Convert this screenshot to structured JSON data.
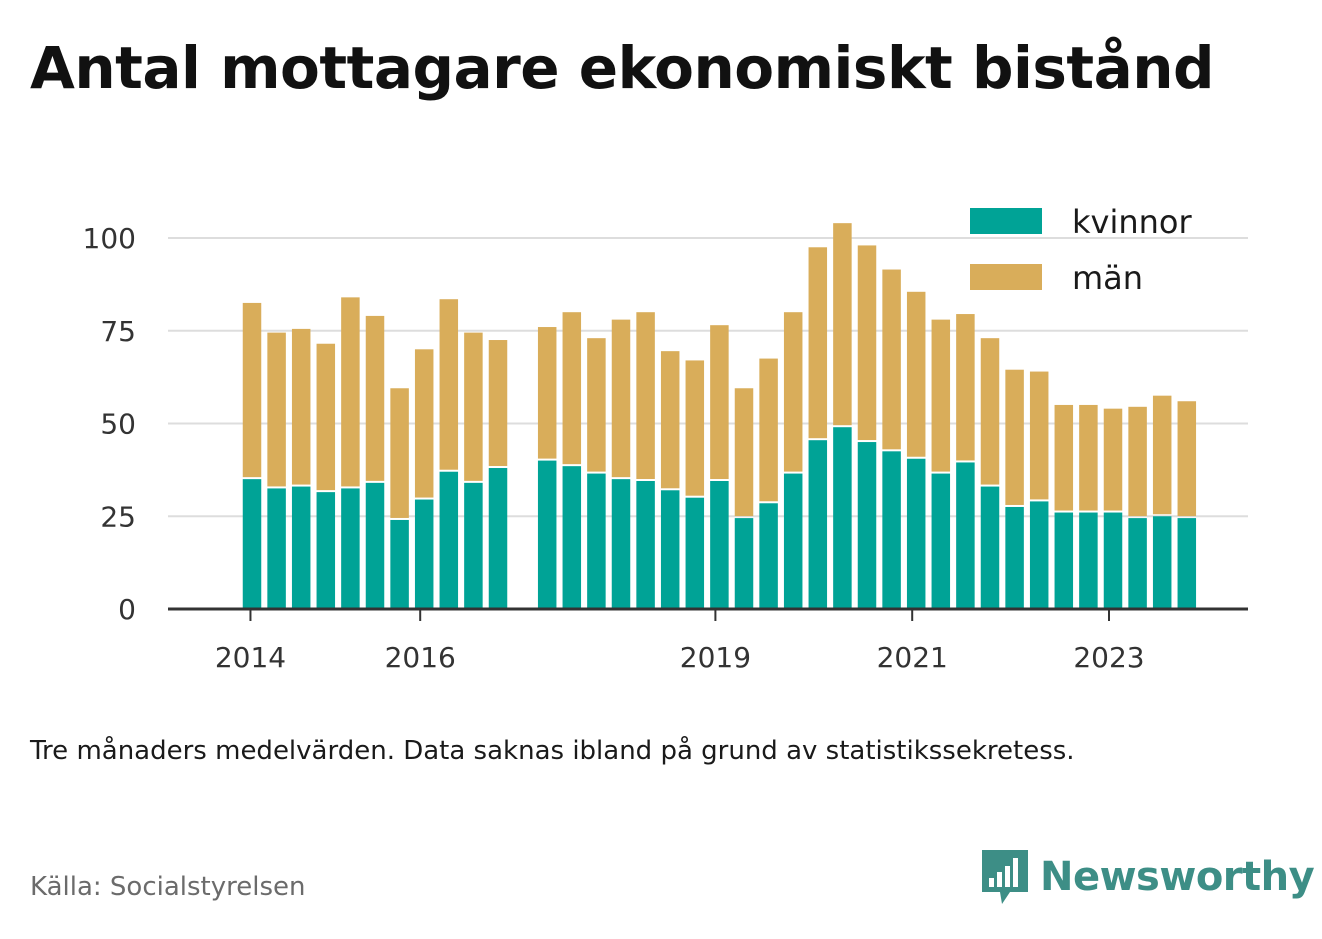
{
  "title": "Antal mottagare ekonomiskt bistånd",
  "note": "Tre månaders medelvärden. Data saknas ibland på grund av statistikssekretess.",
  "source": "Källa: Socialstyrelsen",
  "brand": {
    "name": "Newsworthy",
    "logo_icon": "newsworthy-logo-icon",
    "color": "#3d8e86"
  },
  "colors": {
    "kvinnor": "#00a396",
    "man": "#d9ad5a",
    "man_light": "#f4e6d2",
    "grid": "#dddddd",
    "axis": "#333333"
  },
  "chart_data": {
    "type": "bar",
    "stacked": true,
    "ylim": [
      0,
      105
    ],
    "yticks": [
      0,
      25,
      50,
      75,
      100
    ],
    "x_axis_labels": [
      "2014",
      "2016",
      "2019",
      "2021",
      "2023"
    ],
    "legend_position": "top-right",
    "grid": true,
    "categories": [
      "2014-04",
      "2014-07",
      "2014-10",
      "2015-01",
      "2015-04",
      "2015-07",
      "2015-10",
      "2016-01",
      "2016-04",
      "2016-07",
      "2016-10",
      "2017-01",
      "2017-04",
      "2017-07",
      "2017-10",
      "2018-01",
      "2018-04",
      "2018-07",
      "2018-10",
      "2019-01",
      "2019-04",
      "2019-07",
      "2019-10",
      "2020-01",
      "2020-04",
      "2020-07",
      "2020-10",
      "2021-01",
      "2021-04",
      "2021-07",
      "2021-10",
      "2022-01",
      "2022-04",
      "2022-07",
      "2022-10",
      "2023-01",
      "2023-04",
      "2023-07",
      "2023-10"
    ],
    "series": [
      {
        "name": "kvinnor",
        "values": [
          35,
          32.5,
          33,
          31.5,
          32.5,
          34,
          24,
          29.5,
          37,
          34,
          38,
          null,
          40,
          38.5,
          36.5,
          35,
          34.5,
          32,
          30,
          34.5,
          24.5,
          28.5,
          36.5,
          45.5,
          49,
          45,
          42.5,
          40.5,
          36.5,
          39.5,
          33,
          27.5,
          29,
          26,
          26,
          26,
          24.5,
          25,
          24.5
        ]
      },
      {
        "name": "män",
        "values": [
          47.5,
          42,
          42.5,
          40,
          51.5,
          45,
          35.5,
          40.5,
          46.5,
          40.5,
          34.5,
          null,
          36,
          41.5,
          36.5,
          43,
          45.5,
          37.5,
          37,
          42,
          35,
          39,
          43.5,
          52,
          55,
          53,
          49,
          45,
          41.5,
          40,
          40,
          37,
          35,
          29,
          29,
          28,
          30,
          32.5,
          31.5
        ]
      }
    ]
  }
}
